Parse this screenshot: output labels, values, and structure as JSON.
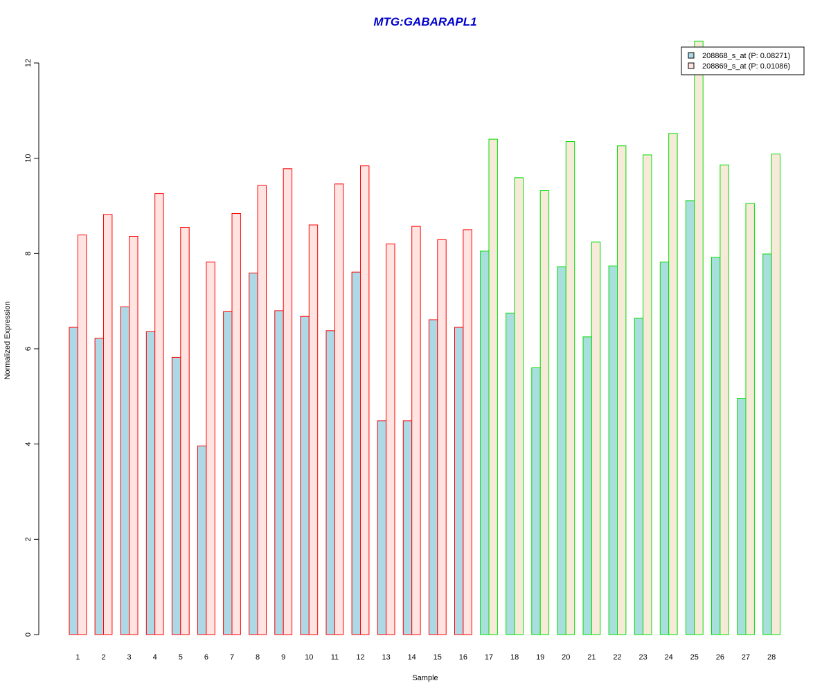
{
  "chart_data": {
    "type": "bar",
    "title": "MTG:GABARAPL1",
    "xlabel": "Sample",
    "ylabel": "Normalized Expression",
    "ylim": [
      0,
      12
    ],
    "yticks": [
      "0",
      "2",
      "4",
      "6",
      "8",
      "10",
      "12"
    ],
    "categories": [
      "1",
      "2",
      "3",
      "4",
      "5",
      "6",
      "7",
      "8",
      "9",
      "10",
      "11",
      "12",
      "13",
      "14",
      "15",
      "16",
      "17",
      "18",
      "19",
      "20",
      "21",
      "22",
      "23",
      "24",
      "25",
      "26",
      "27",
      "28"
    ],
    "series": [
      {
        "name": "208868_s_at (P: 0.08271)",
        "fill": "#add8e6",
        "values": [
          6.45,
          6.22,
          6.88,
          6.36,
          5.82,
          3.96,
          6.78,
          7.59,
          6.8,
          6.68,
          6.38,
          7.61,
          4.49,
          4.49,
          6.61,
          6.45,
          8.05,
          6.75,
          5.6,
          7.72,
          6.25,
          7.74,
          6.64,
          7.82,
          9.11,
          7.92,
          4.96,
          7.99
        ]
      },
      {
        "name": "208869_s_at (P: 0.01086)",
        "fill": "#ffe4e1",
        "values": [
          8.39,
          8.82,
          8.36,
          9.26,
          8.55,
          7.82,
          8.84,
          9.43,
          9.78,
          8.6,
          9.46,
          9.84,
          8.2,
          8.57,
          8.29,
          8.5,
          10.4,
          9.59,
          9.32,
          10.35,
          8.24,
          10.26,
          10.07,
          10.52,
          12.46,
          9.86,
          9.05,
          10.09
        ]
      }
    ],
    "group_border_colors": [
      "#ff0000",
      "#00dd00"
    ],
    "group_sizes": [
      16,
      12
    ],
    "legend_position": "top-right",
    "grid": false
  },
  "colors": {
    "title": "#0000cc",
    "group1_border": "#ff0000",
    "group2_border": "#00dd00",
    "group2_bar1_fill": "#a9dede",
    "group2_bar2_fill": "#f7ead9"
  }
}
